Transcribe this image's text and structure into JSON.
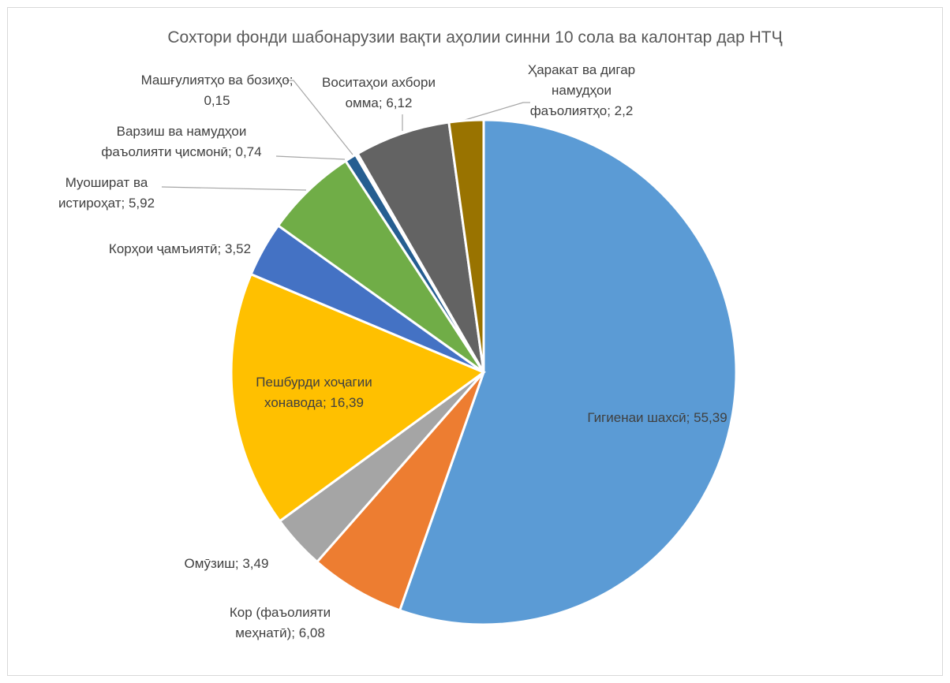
{
  "chart_data": {
    "type": "pie",
    "title": "Сохтори фонди шабонарузии вақти аҳолии синни 10 сола ва калонтар дар НТҶ",
    "categories": [
      "Гигиенаи шахсӣ",
      "Кор (фаъолияти меҳнатӣ)",
      "Омӯзиш",
      "Пешбурди хоҷагии хонавода",
      "Корҳои ҷамъиятӣ",
      "Муошират ва истироҳат",
      "Варзиш ва намудҳои фаъолияти ҷисмонӣ",
      "Машғулиятҳо ва бозиҳо",
      "Воситаҳои ахбори омма",
      "Ҳаракат ва дигар намудҳои фаъолиятҳо"
    ],
    "values": [
      55.39,
      6.08,
      3.49,
      16.39,
      3.52,
      5.92,
      0.74,
      0.15,
      6.12,
      2.2
    ],
    "value_labels": [
      "55,39",
      "6,08",
      "3,49",
      "16,39",
      "3,52",
      "5,92",
      "0,74",
      "0,15",
      "6,12",
      "2,2"
    ],
    "label_separator": "; ",
    "colors": [
      "#5b9bd5",
      "#ed7d31",
      "#a5a5a5",
      "#ffc000",
      "#4472c4",
      "#70ad47",
      "#255e91",
      "#9e480e",
      "#636363",
      "#997300"
    ]
  }
}
